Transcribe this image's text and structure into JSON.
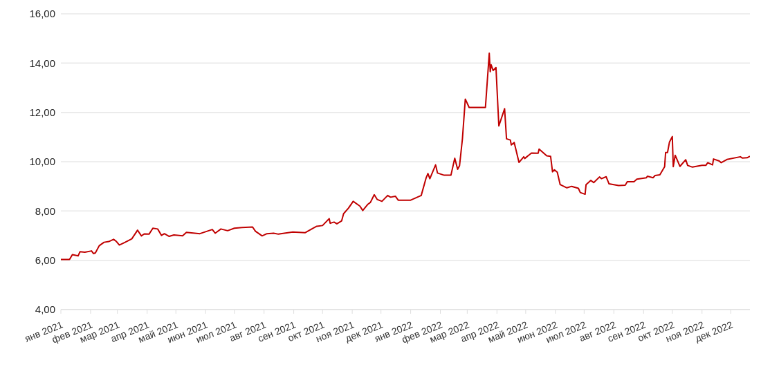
{
  "chart_data": {
    "type": "line",
    "grid": "y",
    "marker": "none",
    "line_style": "solid",
    "xlim": [
      "2021-01-01",
      "2022-12-21"
    ],
    "xticks": [
      {
        "value": "2021-01-01",
        "label": "янв 2021"
      },
      {
        "value": "2021-02-01",
        "label": "фев 2021"
      },
      {
        "value": "2021-03-01",
        "label": "мар 2021"
      },
      {
        "value": "2021-04-01",
        "label": "апр 2021"
      },
      {
        "value": "2021-05-01",
        "label": "май 2021"
      },
      {
        "value": "2021-06-01",
        "label": "июн 2021"
      },
      {
        "value": "2021-07-01",
        "label": "июл 2021"
      },
      {
        "value": "2021-08-01",
        "label": "авг 2021"
      },
      {
        "value": "2021-09-01",
        "label": "сен 2021"
      },
      {
        "value": "2021-10-01",
        "label": "окт 2021"
      },
      {
        "value": "2021-11-01",
        "label": "ноя 2021"
      },
      {
        "value": "2021-12-01",
        "label": "дек 2021"
      },
      {
        "value": "2022-01-01",
        "label": "янв 2022"
      },
      {
        "value": "2022-02-01",
        "label": "фев 2022"
      },
      {
        "value": "2022-03-01",
        "label": "мар 2022"
      },
      {
        "value": "2022-04-01",
        "label": "апр 2022"
      },
      {
        "value": "2022-05-01",
        "label": "май 2022"
      },
      {
        "value": "2022-06-01",
        "label": "июн 2022"
      },
      {
        "value": "2022-07-01",
        "label": "июл 2022"
      },
      {
        "value": "2022-08-01",
        "label": "авг 2022"
      },
      {
        "value": "2022-09-01",
        "label": "сен 2022"
      },
      {
        "value": "2022-10-01",
        "label": "окт 2022"
      },
      {
        "value": "2022-11-01",
        "label": "ноя 2022"
      },
      {
        "value": "2022-12-01",
        "label": "дек 2022"
      }
    ],
    "ylim": [
      4,
      16
    ],
    "yticks": [
      {
        "value": 4,
        "label": "4,00"
      },
      {
        "value": 6,
        "label": "6,00"
      },
      {
        "value": 8,
        "label": "8,00"
      },
      {
        "value": 10,
        "label": "10,00"
      },
      {
        "value": 12,
        "label": "12,00"
      },
      {
        "value": 14,
        "label": "14,00"
      },
      {
        "value": 16,
        "label": "16,00"
      }
    ],
    "x": [
      "2021-01-01",
      "2021-01-10",
      "2021-01-13",
      "2021-01-19",
      "2021-01-21",
      "2021-01-26",
      "2021-02-02",
      "2021-02-04",
      "2021-02-06",
      "2021-02-10",
      "2021-02-15",
      "2021-02-20",
      "2021-02-25",
      "2021-02-28",
      "2021-03-03",
      "2021-03-09",
      "2021-03-16",
      "2021-03-22",
      "2021-03-26",
      "2021-03-29",
      "2021-04-03",
      "2021-04-07",
      "2021-04-12",
      "2021-04-16",
      "2021-04-19",
      "2021-04-24",
      "2021-04-29",
      "2021-05-08",
      "2021-05-12",
      "2021-05-26",
      "2021-06-08",
      "2021-06-11",
      "2021-06-17",
      "2021-06-24",
      "2021-07-01",
      "2021-07-09",
      "2021-07-20",
      "2021-07-23",
      "2021-07-30",
      "2021-08-04",
      "2021-08-11",
      "2021-08-16",
      "2021-08-26",
      "2021-08-31",
      "2021-09-13",
      "2021-09-22",
      "2021-09-25",
      "2021-10-01",
      "2021-10-08",
      "2021-10-09",
      "2021-10-13",
      "2021-10-16",
      "2021-10-21",
      "2021-10-23",
      "2021-10-28",
      "2021-11-02",
      "2021-11-09",
      "2021-11-12",
      "2021-11-17",
      "2021-11-20",
      "2021-11-24",
      "2021-11-27",
      "2021-12-02",
      "2021-12-08",
      "2021-12-11",
      "2021-12-16",
      "2021-12-19",
      "2022-01-01",
      "2022-01-12",
      "2022-01-17",
      "2022-01-19",
      "2022-01-21",
      "2022-01-27",
      "2022-01-29",
      "2022-02-05",
      "2022-02-12",
      "2022-02-16",
      "2022-02-19",
      "2022-02-21",
      "2022-02-24",
      "2022-02-27",
      "2022-03-03",
      "2022-03-20",
      "2022-03-24",
      "2022-03-25",
      "2022-03-26",
      "2022-03-28",
      "2022-03-31",
      "2022-04-03",
      "2022-04-09",
      "2022-04-11",
      "2022-04-15",
      "2022-04-16",
      "2022-04-19",
      "2022-04-21",
      "2022-04-24",
      "2022-04-29",
      "2022-04-30",
      "2022-05-07",
      "2022-05-14",
      "2022-05-15",
      "2022-05-23",
      "2022-05-27",
      "2022-05-29",
      "2022-05-31",
      "2022-06-03",
      "2022-06-06",
      "2022-06-13",
      "2022-06-18",
      "2022-06-25",
      "2022-06-27",
      "2022-07-02",
      "2022-07-03",
      "2022-07-08",
      "2022-07-11",
      "2022-07-17",
      "2022-07-19",
      "2022-07-24",
      "2022-07-27",
      "2022-08-06",
      "2022-08-13",
      "2022-08-15",
      "2022-08-22",
      "2022-08-25",
      "2022-09-04",
      "2022-09-05",
      "2022-09-11",
      "2022-09-13",
      "2022-09-18",
      "2022-09-23",
      "2022-09-24",
      "2022-09-26",
      "2022-09-28",
      "2022-10-01",
      "2022-10-02",
      "2022-10-04",
      "2022-10-09",
      "2022-10-15",
      "2022-10-17",
      "2022-10-22",
      "2022-11-01",
      "2022-11-05",
      "2022-11-07",
      "2022-11-12",
      "2022-11-13",
      "2022-11-19",
      "2022-11-21",
      "2022-11-27",
      "2022-12-11",
      "2022-12-13",
      "2022-12-18",
      "2022-12-21"
    ],
    "series": [
      {
        "color": "#c00000",
        "values": [
          6.03,
          6.03,
          6.23,
          6.18,
          6.35,
          6.33,
          6.38,
          6.27,
          6.3,
          6.59,
          6.73,
          6.76,
          6.85,
          6.76,
          6.62,
          6.73,
          6.87,
          7.22,
          6.99,
          7.07,
          7.06,
          7.3,
          7.27,
          7.01,
          7.08,
          6.97,
          7.03,
          6.99,
          7.13,
          7.08,
          7.25,
          7.1,
          7.27,
          7.2,
          7.3,
          7.33,
          7.35,
          7.18,
          6.99,
          7.08,
          7.1,
          7.06,
          7.12,
          7.15,
          7.12,
          7.32,
          7.38,
          7.41,
          7.69,
          7.5,
          7.55,
          7.48,
          7.6,
          7.89,
          8.11,
          8.39,
          8.2,
          8.02,
          8.26,
          8.35,
          8.66,
          8.47,
          8.39,
          8.63,
          8.56,
          8.6,
          8.44,
          8.44,
          8.63,
          9.33,
          9.52,
          9.31,
          9.87,
          9.54,
          9.45,
          9.45,
          10.14,
          9.69,
          9.84,
          10.93,
          12.54,
          12.2,
          12.2,
          14.4,
          13.65,
          13.93,
          13.7,
          13.82,
          11.45,
          12.15,
          10.93,
          10.88,
          10.68,
          10.78,
          10.46,
          9.97,
          10.2,
          10.13,
          10.35,
          10.34,
          10.51,
          10.24,
          10.22,
          9.59,
          9.67,
          9.57,
          9.07,
          8.94,
          9.0,
          8.92,
          8.75,
          8.68,
          9.07,
          9.24,
          9.15,
          9.38,
          9.31,
          9.39,
          9.1,
          9.03,
          9.05,
          9.19,
          9.19,
          9.29,
          9.35,
          9.41,
          9.35,
          9.44,
          9.47,
          9.8,
          10.37,
          10.37,
          10.79,
          11.02,
          9.8,
          10.26,
          9.81,
          10.08,
          9.85,
          9.78,
          9.85,
          9.85,
          9.96,
          9.87,
          10.11,
          10.03,
          9.96,
          10.09,
          10.2,
          10.15,
          10.16,
          10.22
        ]
      }
    ]
  }
}
